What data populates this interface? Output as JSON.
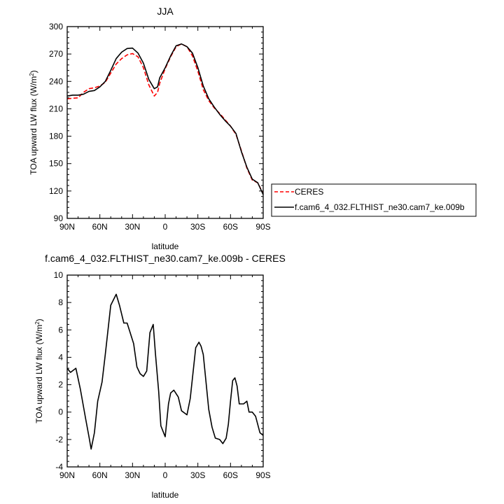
{
  "chart_data": [
    {
      "type": "line",
      "title": "JJA",
      "xlabel": "latitude",
      "ylabel": "TOA upward LW flux (W/m",
      "ylabel_sup": "2",
      "ylabel_end": ")",
      "xlim": [
        90,
        -90
      ],
      "ylim": [
        90,
        300
      ],
      "x_ticks": [
        90,
        60,
        30,
        0,
        -30,
        -60,
        -90
      ],
      "x_tick_labels": [
        "90N",
        "60N",
        "30N",
        "0",
        "30S",
        "60S",
        "90S"
      ],
      "y_ticks": [
        90,
        120,
        150,
        180,
        210,
        240,
        270,
        300
      ],
      "y_tick_labels": [
        "90",
        "120",
        "150",
        "180",
        "210",
        "240",
        "270",
        "300"
      ],
      "grid": false,
      "legend_position": "right",
      "series": [
        {
          "name": "CERES",
          "color": "#ff0000",
          "dash": true,
          "x": [
            90,
            85,
            80,
            75,
            70,
            65,
            60,
            55,
            50,
            45,
            40,
            35,
            30,
            25,
            20,
            15,
            10,
            7,
            5,
            0,
            -5,
            -10,
            -15,
            -20,
            -25,
            -30,
            -35,
            -40,
            -45,
            -50,
            -55,
            -60,
            -65,
            -70,
            -75,
            -80,
            -85,
            -90
          ],
          "y": [
            221,
            221.5,
            222,
            228,
            232,
            233,
            235,
            239,
            249,
            259,
            265,
            269,
            270.5,
            267,
            255,
            236,
            224,
            228,
            238,
            254,
            267,
            278,
            281,
            278,
            268,
            251,
            231,
            219,
            211,
            205,
            198,
            191,
            182,
            164,
            145,
            132,
            129,
            117
          ]
        },
        {
          "name": "f.cam6_4_032.FLTHIST_ne30.cam7_ke.009b",
          "color": "#000000",
          "dash": false,
          "x": [
            90,
            85,
            80,
            75,
            70,
            65,
            60,
            55,
            50,
            45,
            40,
            35,
            30,
            25,
            20,
            15,
            10,
            7,
            5,
            0,
            -5,
            -10,
            -15,
            -20,
            -25,
            -30,
            -35,
            -40,
            -45,
            -50,
            -55,
            -60,
            -65,
            -70,
            -75,
            -80,
            -85,
            -90
          ],
          "y": [
            224,
            225,
            225,
            226,
            229,
            230,
            234,
            240,
            252,
            265,
            272,
            276,
            276.5,
            271,
            260,
            242,
            232,
            234,
            244,
            255,
            268,
            279,
            281,
            278,
            271,
            255,
            235,
            221,
            212,
            204,
            197,
            191,
            183,
            163,
            146,
            133,
            129,
            116
          ]
        }
      ]
    },
    {
      "type": "line",
      "title": "f.cam6_4_032.FLTHIST_ne30.cam7_ke.009b - CERES",
      "xlabel": "latitude",
      "ylabel": "TOA upward LW flux (W/m",
      "ylabel_sup": "2",
      "ylabel_end": ")",
      "xlim": [
        90,
        -90
      ],
      "ylim": [
        -4,
        10
      ],
      "x_ticks": [
        90,
        60,
        30,
        0,
        -30,
        -60,
        -90
      ],
      "x_tick_labels": [
        "90N",
        "60N",
        "30N",
        "0",
        "30S",
        "60S",
        "90S"
      ],
      "y_ticks": [
        -4,
        -2,
        0,
        2,
        4,
        6,
        8,
        10
      ],
      "y_tick_labels": [
        "-4",
        "-2",
        "0",
        "2",
        "4",
        "6",
        "8",
        "10"
      ],
      "grid": false,
      "series": [
        {
          "color": "#000000",
          "dash": false,
          "x": [
            90,
            87,
            82,
            78,
            73,
            70,
            68,
            65,
            62,
            58,
            55,
            50,
            45,
            42,
            38,
            35,
            33,
            29,
            26,
            23,
            20,
            17,
            14,
            11,
            9,
            6,
            4,
            0,
            -3,
            -5,
            -8,
            -12,
            -15,
            -20,
            -23,
            -28,
            -31,
            -33,
            -35,
            -40,
            -43,
            -46,
            -50,
            -53,
            -56,
            -58,
            -60,
            -62,
            -64,
            -66,
            -68,
            -72,
            -75,
            -77,
            -80,
            -83,
            -87,
            -90
          ],
          "y": [
            3.2,
            2.9,
            3.2,
            1.7,
            -0.5,
            -1.8,
            -2.7,
            -1.5,
            0.8,
            2.2,
            4.2,
            7.8,
            8.6,
            7.8,
            6.5,
            6.5,
            6.0,
            5.0,
            3.3,
            2.8,
            2.6,
            3.0,
            5.8,
            6.4,
            4.3,
            1.5,
            -1.0,
            -1.8,
            0.6,
            1.4,
            1.6,
            1.1,
            0.1,
            -0.2,
            1.0,
            4.7,
            5.1,
            4.8,
            4.2,
            0.2,
            -1.1,
            -1.9,
            -2.0,
            -2.3,
            -1.9,
            -0.9,
            0.8,
            2.3,
            2.5,
            1.9,
            0.6,
            0.6,
            0.8,
            0.0,
            0.0,
            -0.3,
            -1.5,
            -1.7
          ]
        }
      ]
    }
  ],
  "legend": {
    "items": [
      {
        "label": "CERES",
        "color": "#ff0000",
        "dash": true
      },
      {
        "label": "f.cam6_4_032.FLTHIST_ne30.cam7_ke.009b",
        "color": "#000000",
        "dash": false
      }
    ]
  }
}
